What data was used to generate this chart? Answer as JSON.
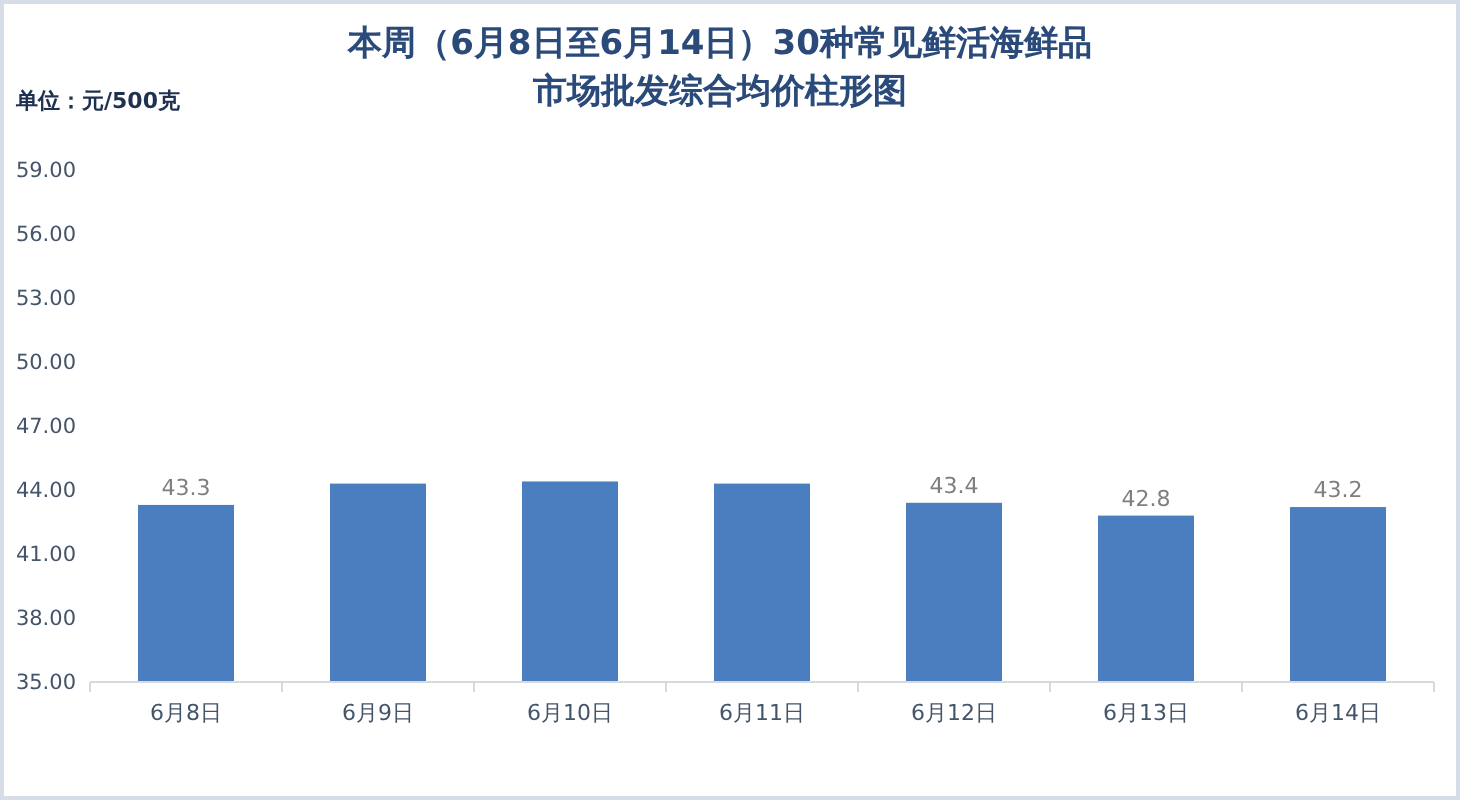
{
  "chart_data": {
    "type": "bar",
    "title": "本周（6月8日至6月14日）30种常见鲜活海鲜品市场批发综合均价柱形图",
    "ylabel": "单位：元/500克",
    "categories": [
      "6月8日",
      "6月9日",
      "6月10日",
      "6月11日",
      "6月12日",
      "6月13日",
      "6月14日"
    ],
    "values": [
      43.3,
      44.3,
      44.4,
      44.3,
      43.4,
      42.8,
      43.2
    ],
    "value_labels": [
      "43.3",
      null,
      null,
      null,
      "43.4",
      "42.8",
      "43.2"
    ],
    "color": "#4a7ebf",
    "ylim": [
      35,
      59
    ],
    "yticks": [
      {
        "value": 35,
        "label": "35.00"
      },
      {
        "value": 38,
        "label": "38.00"
      },
      {
        "value": 41,
        "label": "41.00"
      },
      {
        "value": 44,
        "label": "44.00"
      },
      {
        "value": 47,
        "label": "47.00"
      },
      {
        "value": 50,
        "label": "50.00"
      },
      {
        "value": 53,
        "label": "53.00"
      },
      {
        "value": 56,
        "label": "56.00"
      },
      {
        "value": 59,
        "label": "59.00"
      }
    ]
  }
}
